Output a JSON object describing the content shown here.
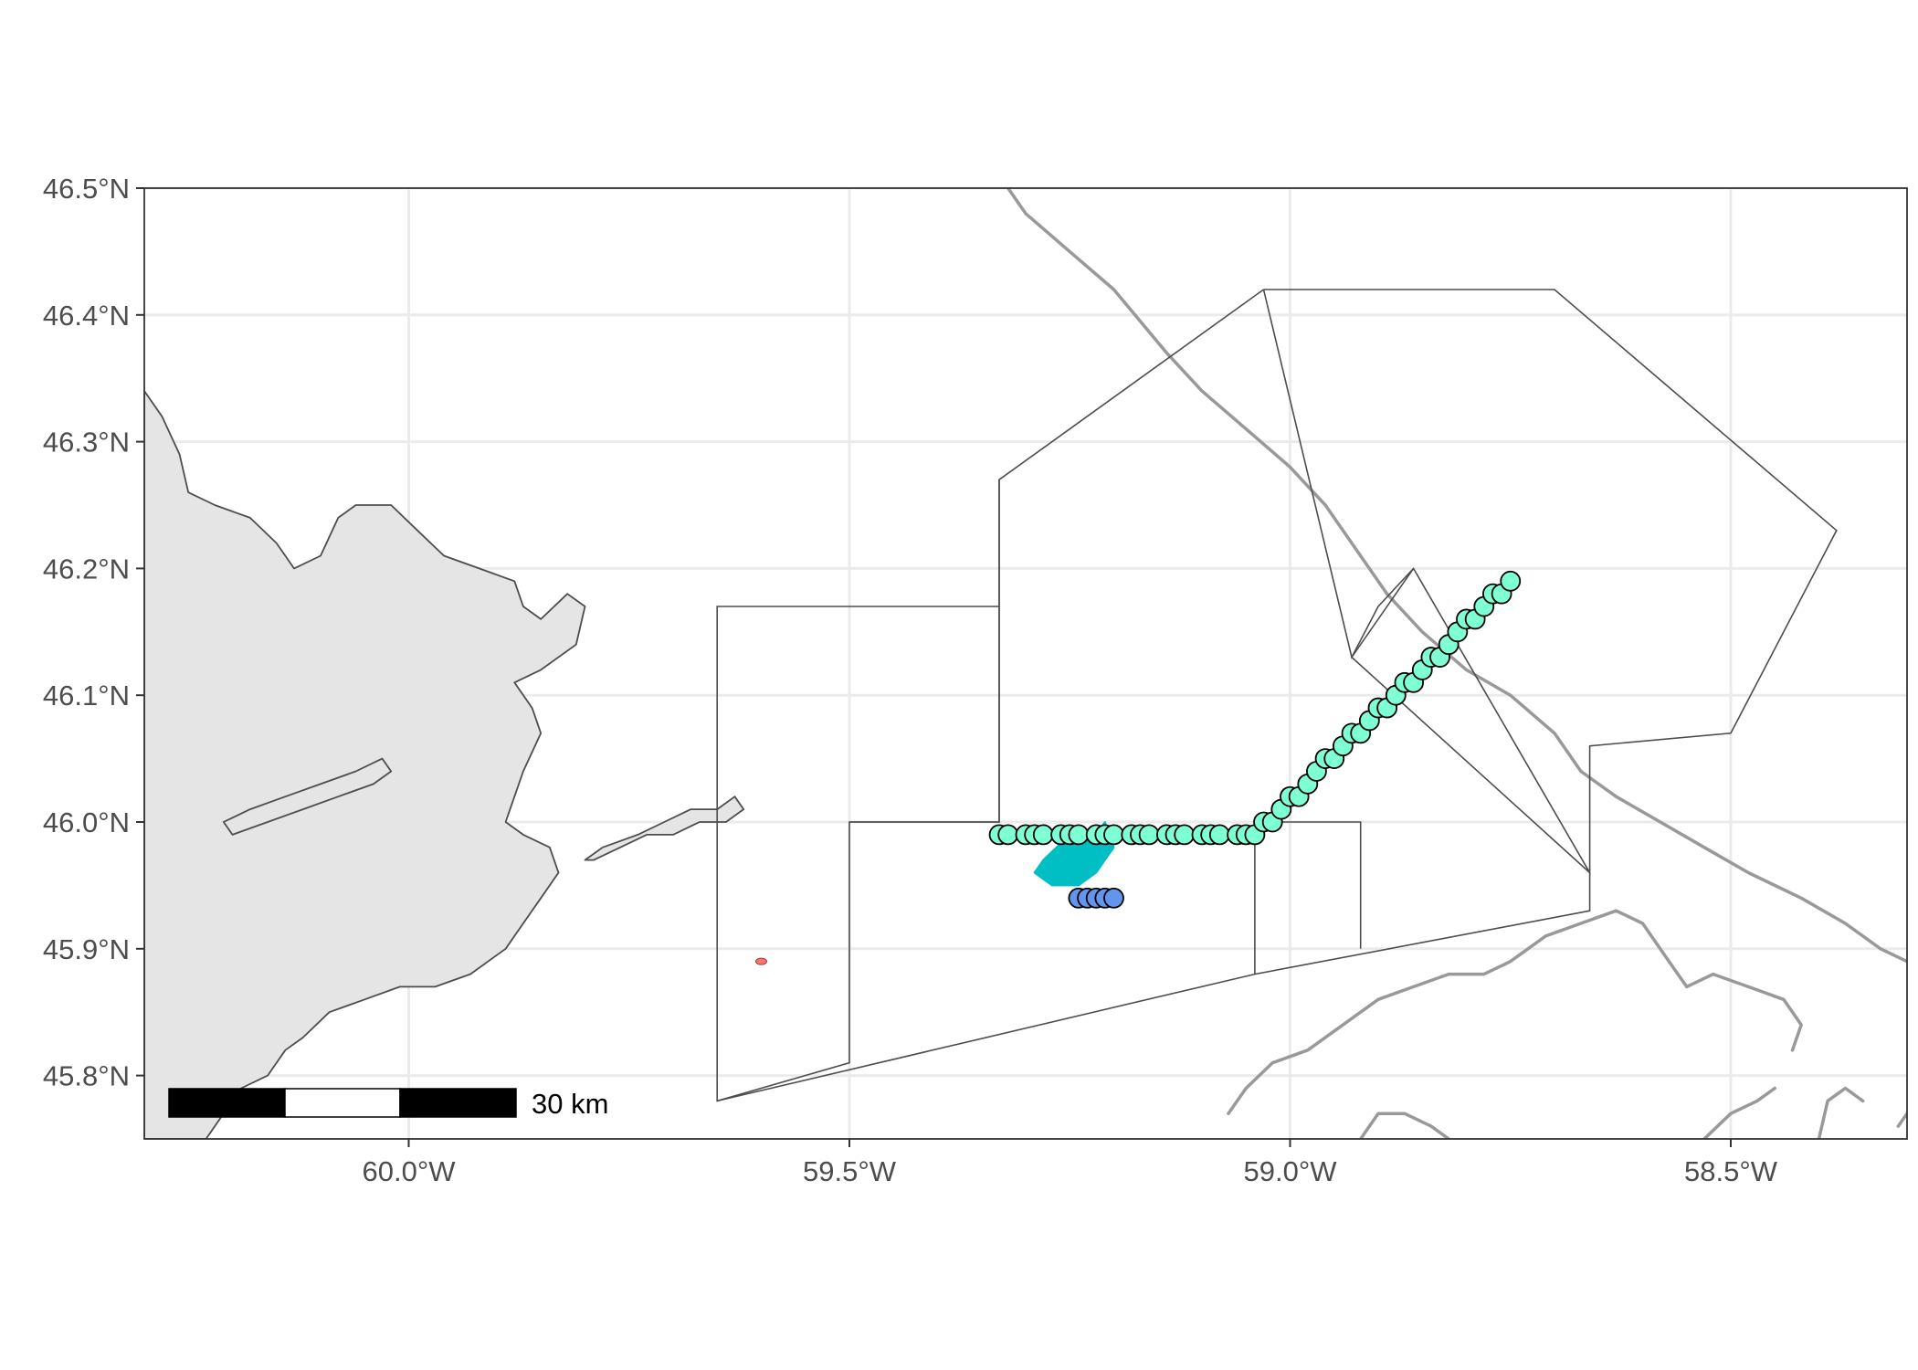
{
  "chart_data": {
    "type": "map",
    "title": "",
    "xlabel": "",
    "ylabel": "",
    "xlim": [
      -60.3,
      -58.3
    ],
    "ylim": [
      45.75,
      46.5
    ],
    "x_ticks": [
      {
        "value": -60.0,
        "label": "60.0°W"
      },
      {
        "value": -59.5,
        "label": "59.5°W"
      },
      {
        "value": -59.0,
        "label": "59.0°W"
      },
      {
        "value": -58.5,
        "label": "58.5°W"
      }
    ],
    "y_ticks": [
      {
        "value": 46.5,
        "label": "46.5°N"
      },
      {
        "value": 46.4,
        "label": "46.4°N"
      },
      {
        "value": 46.3,
        "label": "46.3°N"
      },
      {
        "value": 46.2,
        "label": "46.2°N"
      },
      {
        "value": 46.1,
        "label": "46.1°N"
      },
      {
        "value": 46.0,
        "label": "46.0°N"
      },
      {
        "value": 45.9,
        "label": "45.9°N"
      },
      {
        "value": 45.8,
        "label": "45.8°N"
      }
    ],
    "grid": true,
    "scale_bar": {
      "label": "30 km",
      "length_km": 30,
      "position": "bottom-left"
    },
    "colors": {
      "land": "#e5e5e5",
      "land_outline": "#4d4d4d",
      "boundary": "#999999",
      "zone_outline": "#4d4d4d",
      "track_points": "#7fffd4",
      "small_points": "#6495ed",
      "blob": "#00bfc4",
      "red_feature": "#f8766d",
      "grid": "#ebebeb"
    },
    "land": [
      [
        [
          -60.3,
          46.34
        ],
        [
          -60.28,
          46.32
        ],
        [
          -60.26,
          46.29
        ],
        [
          -60.25,
          46.26
        ],
        [
          -60.22,
          46.25
        ],
        [
          -60.18,
          46.24
        ],
        [
          -60.15,
          46.22
        ],
        [
          -60.13,
          46.2
        ],
        [
          -60.1,
          46.21
        ],
        [
          -60.08,
          46.24
        ],
        [
          -60.06,
          46.25
        ],
        [
          -60.02,
          46.25
        ],
        [
          -59.99,
          46.23
        ],
        [
          -59.96,
          46.21
        ],
        [
          -59.92,
          46.2
        ],
        [
          -59.88,
          46.19
        ],
        [
          -59.87,
          46.17
        ],
        [
          -59.85,
          46.16
        ],
        [
          -59.82,
          46.18
        ],
        [
          -59.8,
          46.17
        ],
        [
          -59.81,
          46.14
        ],
        [
          -59.85,
          46.12
        ],
        [
          -59.88,
          46.11
        ],
        [
          -59.86,
          46.09
        ],
        [
          -59.85,
          46.07
        ],
        [
          -59.87,
          46.04
        ],
        [
          -59.89,
          46.0
        ],
        [
          -59.87,
          45.99
        ],
        [
          -59.84,
          45.98
        ],
        [
          -59.83,
          45.96
        ],
        [
          -59.85,
          45.94
        ],
        [
          -59.87,
          45.92
        ],
        [
          -59.89,
          45.9
        ],
        [
          -59.93,
          45.88
        ],
        [
          -59.97,
          45.87
        ],
        [
          -60.01,
          45.87
        ],
        [
          -60.05,
          45.86
        ],
        [
          -60.09,
          45.85
        ],
        [
          -60.12,
          45.83
        ],
        [
          -60.14,
          45.82
        ],
        [
          -60.16,
          45.8
        ],
        [
          -60.19,
          45.79
        ],
        [
          -60.21,
          45.77
        ],
        [
          -60.23,
          45.75
        ],
        [
          -60.3,
          45.75
        ]
      ],
      [
        [
          -59.8,
          45.97
        ],
        [
          -59.78,
          45.98
        ],
        [
          -59.74,
          45.99
        ],
        [
          -59.71,
          46.0
        ],
        [
          -59.68,
          46.01
        ],
        [
          -59.65,
          46.01
        ],
        [
          -59.63,
          46.02
        ],
        [
          -59.62,
          46.01
        ],
        [
          -59.64,
          46.0
        ],
        [
          -59.67,
          46.0
        ],
        [
          -59.7,
          45.99
        ],
        [
          -59.73,
          45.99
        ],
        [
          -59.76,
          45.98
        ],
        [
          -59.79,
          45.97
        ]
      ],
      [
        [
          -60.2,
          45.99
        ],
        [
          -60.16,
          46.0
        ],
        [
          -60.12,
          46.01
        ],
        [
          -60.08,
          46.02
        ],
        [
          -60.04,
          46.03
        ],
        [
          -60.02,
          46.04
        ],
        [
          -60.03,
          46.05
        ],
        [
          -60.06,
          46.04
        ],
        [
          -60.1,
          46.03
        ],
        [
          -60.14,
          46.02
        ],
        [
          -60.18,
          46.01
        ],
        [
          -60.21,
          46.0
        ]
      ]
    ],
    "coastline_boundary": [
      [
        [
          -59.32,
          46.5
        ],
        [
          -59.3,
          46.48
        ],
        [
          -59.25,
          46.45
        ],
        [
          -59.2,
          46.42
        ],
        [
          -59.14,
          46.37
        ],
        [
          -59.1,
          46.34
        ],
        [
          -59.05,
          46.31
        ],
        [
          -59.0,
          46.28
        ],
        [
          -58.96,
          46.25
        ],
        [
          -58.93,
          46.22
        ],
        [
          -58.89,
          46.18
        ],
        [
          -58.85,
          46.15
        ],
        [
          -58.8,
          46.12
        ],
        [
          -58.75,
          46.1
        ],
        [
          -58.7,
          46.07
        ],
        [
          -58.67,
          46.04
        ],
        [
          -58.63,
          46.02
        ],
        [
          -58.58,
          46.0
        ],
        [
          -58.53,
          45.98
        ],
        [
          -58.48,
          45.96
        ],
        [
          -58.42,
          45.94
        ],
        [
          -58.37,
          45.92
        ],
        [
          -58.33,
          45.9
        ],
        [
          -58.3,
          45.89
        ]
      ],
      [
        [
          -59.07,
          45.77
        ],
        [
          -59.05,
          45.79
        ],
        [
          -59.02,
          45.81
        ],
        [
          -58.98,
          45.82
        ],
        [
          -58.94,
          45.84
        ],
        [
          -58.9,
          45.86
        ],
        [
          -58.86,
          45.87
        ],
        [
          -58.82,
          45.88
        ],
        [
          -58.78,
          45.88
        ],
        [
          -58.75,
          45.89
        ],
        [
          -58.71,
          45.91
        ],
        [
          -58.67,
          45.92
        ],
        [
          -58.63,
          45.93
        ],
        [
          -58.6,
          45.92
        ],
        [
          -58.57,
          45.89
        ],
        [
          -58.55,
          45.87
        ],
        [
          -58.52,
          45.88
        ],
        [
          -58.48,
          45.87
        ],
        [
          -58.44,
          45.86
        ],
        [
          -58.42,
          45.84
        ],
        [
          -58.43,
          45.82
        ]
      ],
      [
        [
          -58.92,
          45.75
        ],
        [
          -58.9,
          45.77
        ],
        [
          -58.87,
          45.77
        ],
        [
          -58.84,
          45.76
        ],
        [
          -58.82,
          45.75
        ]
      ],
      [
        [
          -58.53,
          45.75
        ],
        [
          -58.5,
          45.77
        ],
        [
          -58.47,
          45.78
        ],
        [
          -58.45,
          45.79
        ]
      ],
      [
        [
          -58.4,
          45.75
        ],
        [
          -58.39,
          45.78
        ],
        [
          -58.37,
          45.79
        ],
        [
          -58.35,
          45.78
        ]
      ],
      [
        [
          -58.31,
          45.76
        ],
        [
          -58.3,
          45.77
        ]
      ]
    ],
    "zones": [
      [
        [
          -59.04,
          45.88
        ],
        [
          -59.04,
          46.0
        ],
        [
          -58.92,
          46.0
        ],
        [
          -58.92,
          45.9
        ]
      ],
      [
        [
          -59.03,
          46.42
        ],
        [
          -58.7,
          46.42
        ],
        [
          -58.38,
          46.23
        ],
        [
          -58.5,
          46.07
        ],
        [
          -58.66,
          46.06
        ],
        [
          -58.66,
          45.96
        ],
        [
          -58.86,
          46.2
        ],
        [
          -58.9,
          46.17
        ],
        [
          -58.93,
          46.13
        ],
        [
          -59.03,
          46.42
        ]
      ],
      [
        [
          -59.33,
          46.27
        ],
        [
          -59.33,
          46.0
        ],
        [
          -59.5,
          46.0
        ],
        [
          -59.5,
          45.81
        ],
        [
          -59.65,
          45.78
        ],
        [
          -59.65,
          46.17
        ],
        [
          -59.33,
          46.17
        ]
      ],
      [
        [
          -59.5,
          46.0
        ],
        [
          -59.33,
          46.0
        ],
        [
          -59.33,
          46.27
        ],
        [
          -59.03,
          46.42
        ]
      ],
      [
        [
          -59.65,
          45.78
        ],
        [
          -59.04,
          45.88
        ],
        [
          -58.66,
          45.93
        ],
        [
          -58.66,
          45.96
        ],
        [
          -58.93,
          46.13
        ],
        [
          -58.86,
          46.2
        ]
      ]
    ],
    "blob": [
      [
        -59.28,
        45.97
      ],
      [
        -59.25,
        45.99
      ],
      [
        -59.22,
        45.99
      ],
      [
        -59.21,
        46.0
      ],
      [
        -59.2,
        45.98
      ],
      [
        -59.21,
        45.97
      ],
      [
        -59.22,
        45.96
      ],
      [
        -59.24,
        45.95
      ],
      [
        -59.27,
        45.95
      ],
      [
        -59.29,
        45.96
      ]
    ],
    "red_feature": [
      [
        -59.6,
        45.89
      ]
    ],
    "series": [
      {
        "points": [
          [
            -59.33,
            45.99
          ],
          [
            -59.32,
            45.99
          ],
          [
            -59.3,
            45.99
          ],
          [
            -59.29,
            45.99
          ],
          [
            -59.28,
            45.99
          ],
          [
            -59.26,
            45.99
          ],
          [
            -59.25,
            45.99
          ],
          [
            -59.24,
            45.99
          ],
          [
            -59.22,
            45.99
          ],
          [
            -59.21,
            45.99
          ],
          [
            -59.2,
            45.99
          ],
          [
            -59.18,
            45.99
          ],
          [
            -59.17,
            45.99
          ],
          [
            -59.16,
            45.99
          ],
          [
            -59.14,
            45.99
          ],
          [
            -59.13,
            45.99
          ],
          [
            -59.12,
            45.99
          ],
          [
            -59.1,
            45.99
          ],
          [
            -59.09,
            45.99
          ],
          [
            -59.08,
            45.99
          ],
          [
            -59.06,
            45.99
          ],
          [
            -59.05,
            45.99
          ],
          [
            -59.04,
            45.99
          ],
          [
            -59.03,
            46.0
          ],
          [
            -59.02,
            46.0
          ],
          [
            -59.01,
            46.01
          ],
          [
            -59.0,
            46.02
          ],
          [
            -58.99,
            46.02
          ],
          [
            -58.98,
            46.03
          ],
          [
            -58.97,
            46.04
          ],
          [
            -58.96,
            46.05
          ],
          [
            -58.95,
            46.05
          ],
          [
            -58.94,
            46.06
          ],
          [
            -58.93,
            46.07
          ],
          [
            -58.92,
            46.07
          ],
          [
            -58.91,
            46.08
          ],
          [
            -58.9,
            46.09
          ],
          [
            -58.89,
            46.09
          ],
          [
            -58.88,
            46.1
          ],
          [
            -58.87,
            46.11
          ],
          [
            -58.86,
            46.11
          ],
          [
            -58.85,
            46.12
          ],
          [
            -58.84,
            46.13
          ],
          [
            -58.83,
            46.13
          ],
          [
            -58.82,
            46.14
          ],
          [
            -58.81,
            46.15
          ],
          [
            -58.8,
            46.16
          ],
          [
            -58.79,
            46.16
          ],
          [
            -58.78,
            46.17
          ],
          [
            -58.77,
            46.18
          ],
          [
            -58.76,
            46.18
          ],
          [
            -58.75,
            46.19
          ]
        ]
      },
      {
        "points": [
          [
            -59.24,
            45.94
          ],
          [
            -59.23,
            45.94
          ],
          [
            -59.22,
            45.94
          ],
          [
            -59.21,
            45.94
          ],
          [
            -59.2,
            45.94
          ]
        ]
      }
    ]
  }
}
